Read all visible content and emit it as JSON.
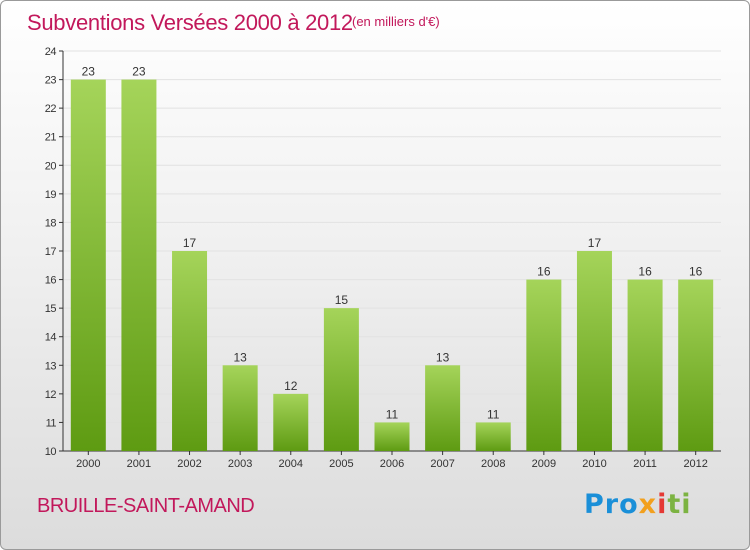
{
  "title": "Subventions Versées 2000 à 2012",
  "subtitle": "(en milliers d'€)",
  "commune": "BRUILLE-SAINT-AMAND",
  "logo": {
    "p1": "Pro",
    "p2": "x",
    "p3": "i",
    "p4": "ti"
  },
  "colors": {
    "title": "#c2185b",
    "bar_top": "#a5d45a",
    "bar_bottom": "#5e9b12",
    "axis": "#333333"
  },
  "chart_data": {
    "type": "bar",
    "categories": [
      "2000",
      "2001",
      "2002",
      "2003",
      "2004",
      "2005",
      "2006",
      "2007",
      "2008",
      "2009",
      "2010",
      "2011",
      "2012"
    ],
    "values": [
      23,
      23,
      17,
      13,
      12,
      15,
      11,
      13,
      11,
      16,
      17,
      16,
      16
    ],
    "ylim": [
      10,
      24
    ],
    "yticks": [
      10,
      11,
      12,
      13,
      14,
      15,
      16,
      17,
      18,
      19,
      20,
      21,
      22,
      23,
      24
    ],
    "grid": true,
    "xlabel": "",
    "ylabel": ""
  }
}
